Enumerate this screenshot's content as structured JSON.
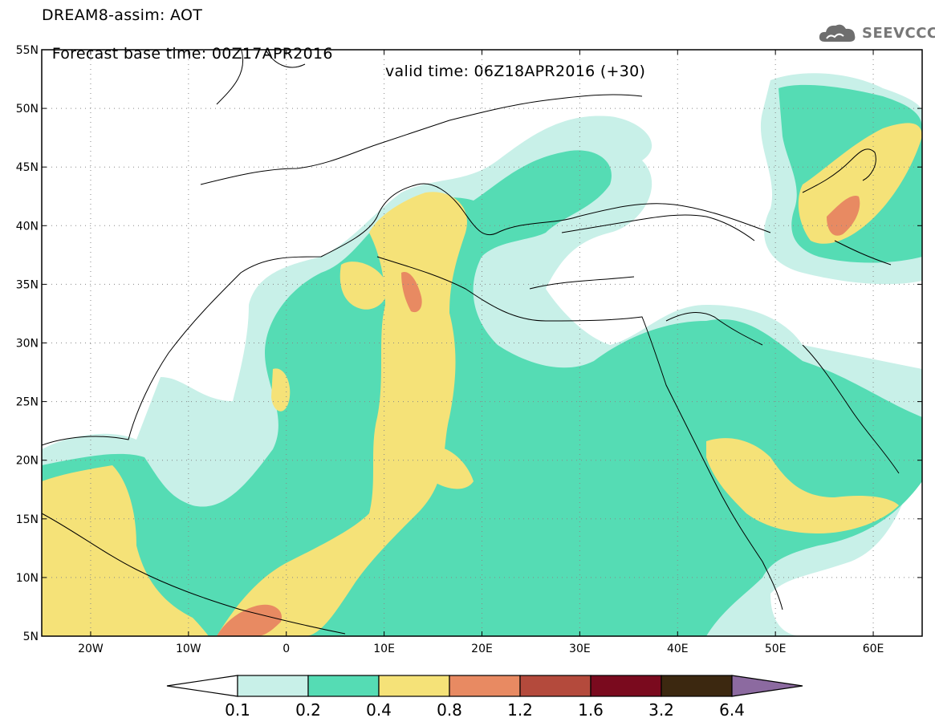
{
  "header": {
    "line1": "DREAM8-assim: AOT",
    "line2": "Forecast base time: 00Z17APR2016",
    "valid": "valid time: 06Z18APR2016 (+30)",
    "logo_text": "SEEVCCC",
    "logo_icon": "cloud-icon"
  },
  "map": {
    "lon_range": [
      -25,
      65
    ],
    "lat_range": [
      5,
      55
    ],
    "grid": "dotted",
    "lat_labels": [
      "5N",
      "10N",
      "15N",
      "20N",
      "25N",
      "30N",
      "35N",
      "40N",
      "45N",
      "50N",
      "55N"
    ],
    "lat_values": [
      5,
      10,
      15,
      20,
      25,
      30,
      35,
      40,
      45,
      50,
      55
    ],
    "lon_labels": [
      "20W",
      "10W",
      "0",
      "10E",
      "20E",
      "30E",
      "40E",
      "50E",
      "60E"
    ],
    "lon_values": [
      -20,
      -10,
      0,
      10,
      20,
      30,
      40,
      50,
      60
    ]
  },
  "colorbar": {
    "labels": [
      "0.1",
      "0.2",
      "0.4",
      "0.8",
      "1.2",
      "1.6",
      "3.2",
      "6.4"
    ],
    "colors": [
      "#ffffff",
      "#c8f0e8",
      "#55dcb4",
      "#f5e278",
      "#e88a62",
      "#b44a3c",
      "#7a0a1e",
      "#3c2810",
      "#8c6aa0"
    ]
  }
}
